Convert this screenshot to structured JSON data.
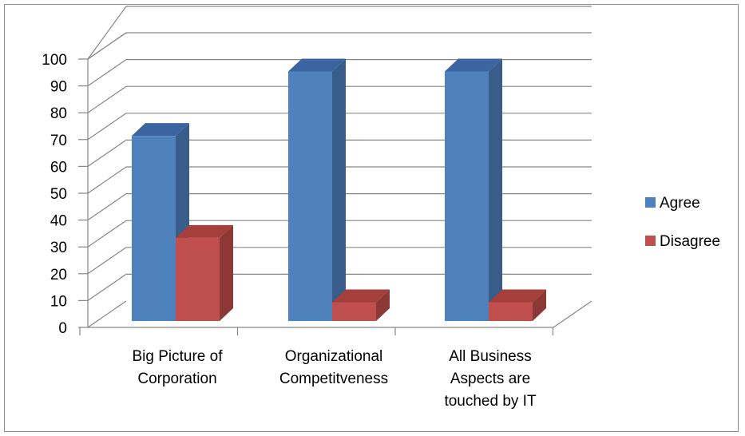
{
  "chart_data": {
    "type": "bar",
    "categories": [
      [
        "Big Picture of",
        "Corporation"
      ],
      [
        "Organizational",
        "Competitveness"
      ],
      [
        "All Business",
        "Aspects are",
        "touched by IT"
      ]
    ],
    "series": [
      {
        "name": "Agree",
        "values": [
          69,
          93,
          93
        ],
        "color": "#4F81BD",
        "side_color": "#385D8A",
        "top_color": "#3B64A0"
      },
      {
        "name": "Disagree",
        "values": [
          31,
          7,
          7
        ],
        "color": "#C0504D",
        "side_color": "#8C3836",
        "top_color": "#A43F3C"
      }
    ],
    "yticks": [
      "0",
      "10",
      "20",
      "30",
      "40",
      "50",
      "60",
      "70",
      "80",
      "90",
      "100"
    ],
    "ylim": [
      0,
      100
    ],
    "grid": true,
    "three_d": true,
    "legend_position": "right"
  }
}
